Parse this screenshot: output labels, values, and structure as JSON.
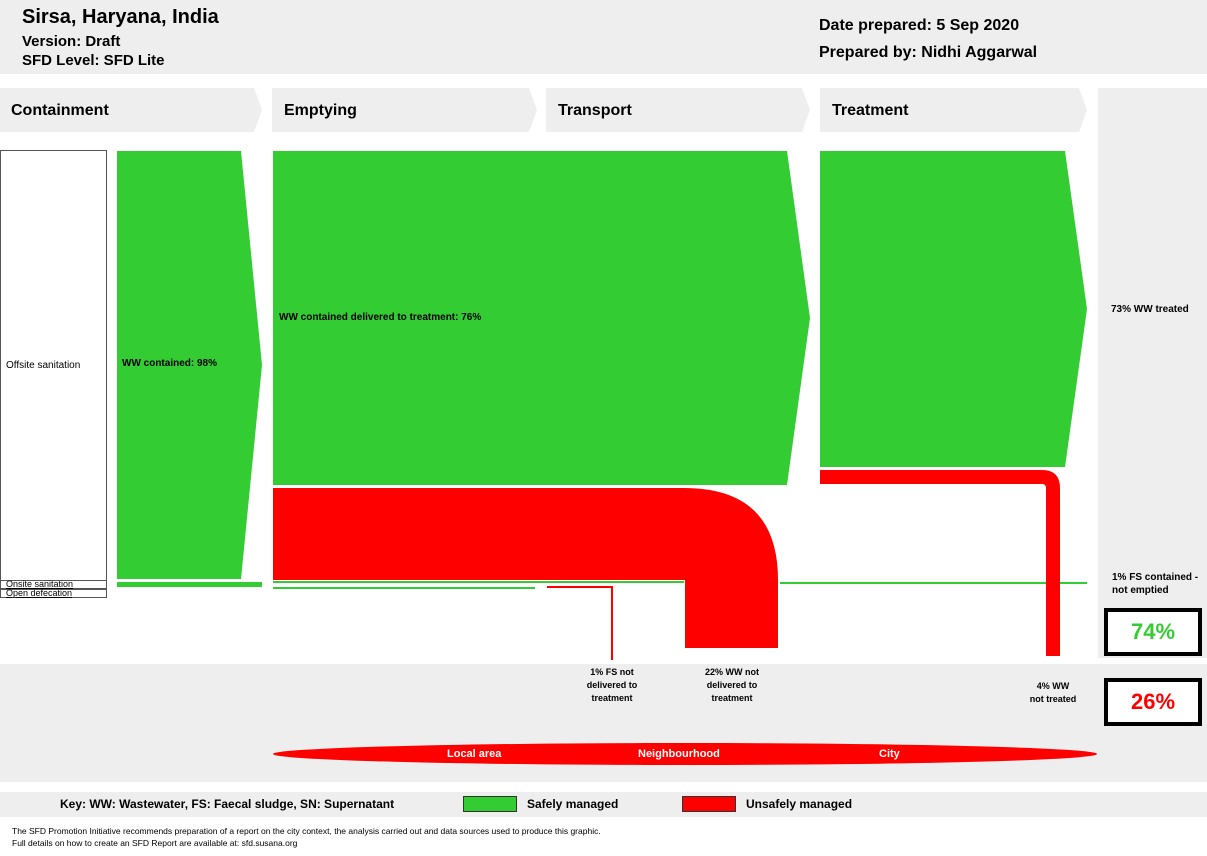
{
  "header": {
    "city": "Sirsa, Haryana, India",
    "version": "Version: Draft",
    "level": "SFD Level: SFD Lite",
    "date": "Date prepared: 5 Sep 2020",
    "prepared_by": "Prepared by: Nidhi Aggarwal"
  },
  "stages": [
    "Containment",
    "Emptying",
    "Transport",
    "Treatment"
  ],
  "containment": {
    "offsite": "Offsite sanitation",
    "onsite": "Onsite sanitation",
    "open_defecation": "Open defecation"
  },
  "flows": {
    "ww_contained": "WW contained: 98%",
    "ww_delivered": "WW contained delivered to treatment: 76%",
    "ww_treated": "73% WW treated",
    "fs_not_emptied": "1% FS contained - not emptied"
  },
  "losses": {
    "fs_not_delivered": "1% FS not delivered to treatment",
    "ww_not_delivered": "22% WW not delivered to treatment",
    "ww_not_treated": "4% WW not treated"
  },
  "impact": {
    "local": "Local area",
    "neighbourhood": "Neighbourhood",
    "city": "City"
  },
  "totals": {
    "safe": "74%",
    "unsafe": "26%"
  },
  "key": {
    "text": "Key: WW: Wastewater, FS: Faecal sludge, SN: Supernatant",
    "safe": "Safely managed",
    "unsafe": "Unsafely managed"
  },
  "colors": {
    "safe": "#33cc33",
    "unsafe": "#ff0000",
    "panel": "#eeeeee"
  },
  "footer": {
    "line1": "The SFD Promotion Initiative recommends preparation of a report on the city context, the analysis carried out and data sources used to produce this graphic.",
    "line2": "Full details on how to create an SFD Report are available at: sfd.susana.org"
  }
}
